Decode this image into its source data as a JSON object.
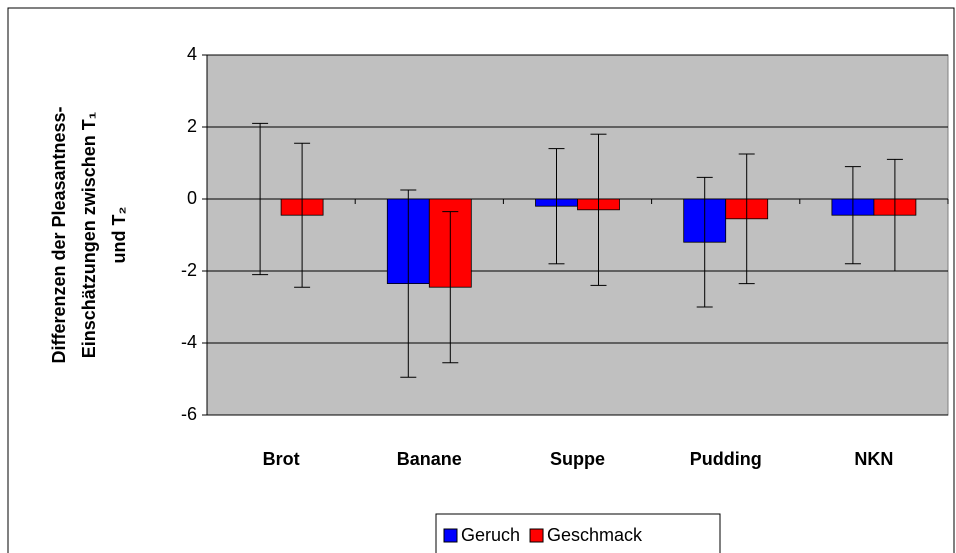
{
  "chart_data": {
    "type": "bar",
    "ylabel": [
      "Differenzen der Pleasantness-",
      "Einschätzungen zwischen T₁",
      "und T₂"
    ],
    "categories": [
      "Brot",
      "Banane",
      "Suppe",
      "Pudding",
      "NKN"
    ],
    "series": [
      {
        "name": "Geruch",
        "color": "#0000ff",
        "values": [
          0,
          -2.35,
          -0.2,
          -1.2,
          -0.45
        ],
        "errors": [
          2.1,
          2.6,
          1.6,
          1.8,
          1.35
        ]
      },
      {
        "name": "Geschmack",
        "color": "#ff0000",
        "values": [
          -0.45,
          -2.45,
          -0.3,
          -0.55,
          -0.45
        ],
        "errors": [
          2.0,
          2.1,
          2.1,
          1.8,
          1.55
        ]
      }
    ],
    "ylim": [
      -6,
      4
    ],
    "yticks": [
      -6,
      -4,
      -2,
      0,
      2,
      4
    ],
    "grid": true,
    "legend": "bottom"
  }
}
